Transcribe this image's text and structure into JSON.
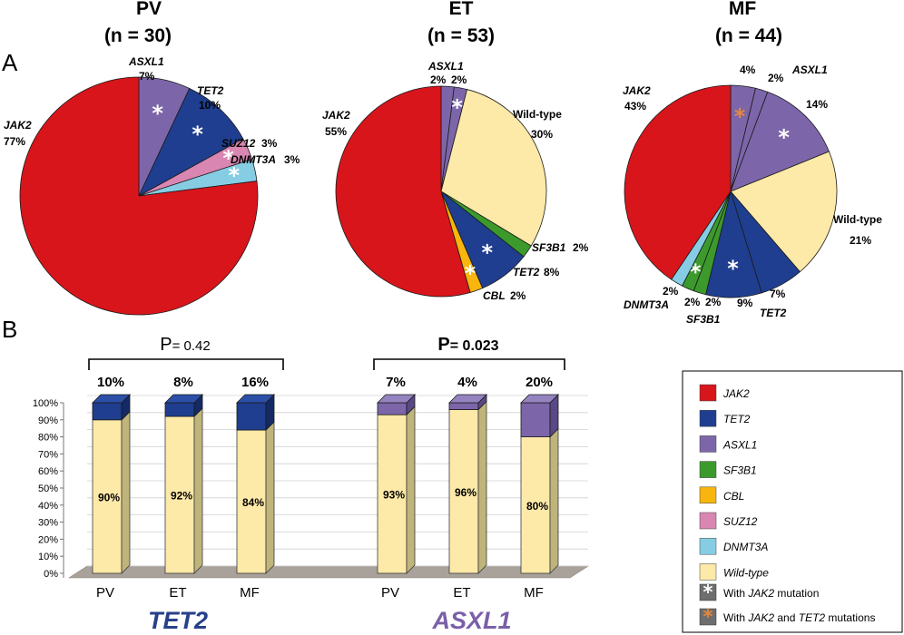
{
  "colors": {
    "JAK2": "#d8151b",
    "TET2": "#1f3e8f",
    "ASXL1": "#7c66a9",
    "SF3B1": "#3c9a2c",
    "CBL": "#f8b50d",
    "SUZ12": "#d987b2",
    "DNMT3A": "#86cde4",
    "Wild-type": "#fde9a8",
    "white_star": "#ffffff",
    "orange_star": "#e8873a",
    "tet2_title": "#27408b",
    "asxl1_title": "#7b5fa8"
  },
  "panel_labels": {
    "a": "A",
    "b": "B"
  },
  "chart_data": [
    {
      "type": "pie",
      "id": "pv",
      "title": "PV",
      "subtitle": "(n = 30)",
      "slices": [
        {
          "gene": "JAK2",
          "value": 77,
          "label": "JAK2",
          "pct": "77%",
          "star": null
        },
        {
          "gene": "ASXL1",
          "value": 7,
          "label": "ASXL1",
          "pct": "7%",
          "star": "white"
        },
        {
          "gene": "TET2",
          "value": 10,
          "label": "TET2",
          "pct": "10%",
          "star": "white"
        },
        {
          "gene": "SUZ12",
          "value": 3,
          "label": "SUZ12",
          "pct": "3%",
          "star": "white"
        },
        {
          "gene": "DNMT3A",
          "value": 3,
          "label": "DNMT3A",
          "pct": "3%",
          "star": "white"
        }
      ]
    },
    {
      "type": "pie",
      "id": "et",
      "title": "ET",
      "subtitle": "(n = 53)",
      "slices": [
        {
          "gene": "JAK2",
          "value": 55,
          "label": "JAK2",
          "pct": "55%",
          "star": null
        },
        {
          "gene": "ASXL1",
          "value": 2,
          "label": "ASXL1",
          "pct": "2%",
          "star": null
        },
        {
          "gene": "ASXL1",
          "value": 2,
          "label": "",
          "pct": "2%",
          "star": "white"
        },
        {
          "gene": "Wild-type",
          "value": 30,
          "label": "Wild-type",
          "pct": "30%",
          "star": null
        },
        {
          "gene": "SF3B1",
          "value": 2,
          "label": "SF3B1",
          "pct": "2%",
          "star": null
        },
        {
          "gene": "TET2",
          "value": 8,
          "label": "TET2",
          "pct": "8%",
          "star": "white"
        },
        {
          "gene": "CBL",
          "value": 2,
          "label": "CBL",
          "pct": "2%",
          "star": "white"
        }
      ]
    },
    {
      "type": "pie",
      "id": "mf",
      "title": "MF",
      "subtitle": "(n = 44)",
      "slices": [
        {
          "gene": "JAK2",
          "value": 43,
          "label": "JAK2",
          "pct": "43%",
          "star": null
        },
        {
          "gene": "ASXL1",
          "value": 4,
          "label": "",
          "pct": "4%",
          "star": "orange"
        },
        {
          "gene": "ASXL1",
          "value": 2,
          "label": "ASXL1",
          "pct": "2%",
          "star": null
        },
        {
          "gene": "ASXL1",
          "value": 14,
          "label": "",
          "pct": "14%",
          "star": "white"
        },
        {
          "gene": "Wild-type",
          "value": 21,
          "label": "Wild-type",
          "pct": "21%",
          "star": null
        },
        {
          "gene": "TET2",
          "value": 7,
          "label": "",
          "pct": "7%",
          "star": null
        },
        {
          "gene": "TET2",
          "value": 9,
          "label": "TET2",
          "pct": "9%",
          "star": "white"
        },
        {
          "gene": "SF3B1",
          "value": 2,
          "label": "SF3B1",
          "pct": "2%",
          "star": null
        },
        {
          "gene": "SF3B1",
          "value": 2,
          "label": "",
          "pct": "2%",
          "star": "white"
        },
        {
          "gene": "DNMT3A",
          "value": 2,
          "label": "DNMT3A",
          "pct": "2%",
          "star": null
        }
      ]
    },
    {
      "type": "bar",
      "stacked": true,
      "id": "bars",
      "y_ticks": [
        "0%",
        "10%",
        "20%",
        "30%",
        "40%",
        "50%",
        "60%",
        "70%",
        "80%",
        "90%",
        "100%"
      ],
      "ylim": [
        0,
        100
      ],
      "groups": [
        {
          "name": "TET2",
          "p_prefix": "P",
          "p_value": "= 0.42",
          "p_bold": false,
          "categories": [
            "PV",
            "ET",
            "MF"
          ],
          "wild": [
            90,
            92,
            84
          ],
          "wild_labels": [
            "90%",
            "92%",
            "84%"
          ],
          "mutant": [
            10,
            8,
            16
          ],
          "mutant_labels": [
            "10%",
            "8%",
            "16%"
          ],
          "mutant_gene": "TET2"
        },
        {
          "name": "ASXL1",
          "p_prefix": "P",
          "p_value": "= 0.023",
          "p_bold": true,
          "categories": [
            "PV",
            "ET",
            "MF"
          ],
          "wild": [
            93,
            96,
            80
          ],
          "wild_labels": [
            "93%",
            "96%",
            "80%"
          ],
          "mutant": [
            7,
            4,
            20
          ],
          "mutant_labels": [
            "7%",
            "4%",
            "20%"
          ],
          "mutant_gene": "ASXL1"
        }
      ]
    }
  ],
  "legend": {
    "items": [
      {
        "gene": "JAK2",
        "label": "JAK2"
      },
      {
        "gene": "TET2",
        "label": "TET2"
      },
      {
        "gene": "ASXL1",
        "label": "ASXL1"
      },
      {
        "gene": "SF3B1",
        "label": "SF3B1"
      },
      {
        "gene": "CBL",
        "label": "CBL"
      },
      {
        "gene": "SUZ12",
        "label": "SUZ12"
      },
      {
        "gene": "DNMT3A",
        "label": "DNMT3A"
      },
      {
        "gene": "Wild-type",
        "label": "Wild-type"
      }
    ],
    "star_items": [
      {
        "star": "white",
        "prefix": "With ",
        "gene": "JAK2",
        "suffix": " mutation"
      },
      {
        "star": "orange",
        "prefix": "With ",
        "gene": "JAK2",
        "middle": " and ",
        "gene2": "TET2",
        "suffix": " mutations"
      }
    ]
  }
}
